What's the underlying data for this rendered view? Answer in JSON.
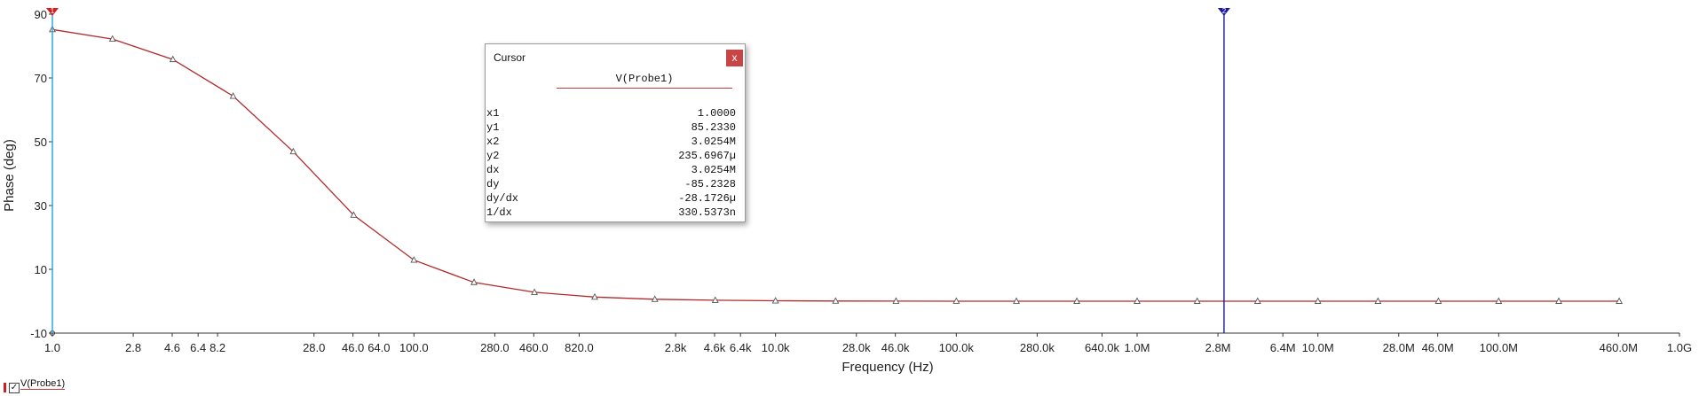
{
  "chart_data": {
    "type": "line",
    "xlabel": "Frequency (Hz)",
    "ylabel": "Phase (deg)",
    "x_scale": "log",
    "xlim": [
      1,
      1000000000
    ],
    "ylim": [
      -10,
      90
    ],
    "x_tick_labels": [
      {
        "v": 1,
        "label": "1.0"
      },
      {
        "v": 2.8,
        "label": "2.8"
      },
      {
        "v": 4.6,
        "label": "4.6"
      },
      {
        "v": 6.4,
        "label": "6.4"
      },
      {
        "v": 8.2,
        "label": "8.2"
      },
      {
        "v": 28,
        "label": "28.0"
      },
      {
        "v": 46,
        "label": "46.0"
      },
      {
        "v": 64,
        "label": "64.0"
      },
      {
        "v": 100,
        "label": "100.0"
      },
      {
        "v": 280,
        "label": "280.0"
      },
      {
        "v": 460,
        "label": "460.0"
      },
      {
        "v": 820,
        "label": "820.0"
      },
      {
        "v": 2800,
        "label": "2.8k"
      },
      {
        "v": 4600,
        "label": "4.6k"
      },
      {
        "v": 6400,
        "label": "6.4k"
      },
      {
        "v": 10000,
        "label": "10.0k"
      },
      {
        "v": 28000,
        "label": "28.0k"
      },
      {
        "v": 46000,
        "label": "46.0k"
      },
      {
        "v": 100000,
        "label": "100.0k"
      },
      {
        "v": 280000,
        "label": "280.0k"
      },
      {
        "v": 640000,
        "label": "640.0k"
      },
      {
        "v": 1000000,
        "label": "1.0M"
      },
      {
        "v": 2800000,
        "label": "2.8M"
      },
      {
        "v": 6400000,
        "label": "6.4M"
      },
      {
        "v": 10000000,
        "label": "10.0M"
      },
      {
        "v": 28000000,
        "label": "28.0M"
      },
      {
        "v": 46000000,
        "label": "46.0M"
      },
      {
        "v": 100000000,
        "label": "100.0M"
      },
      {
        "v": 460000000,
        "label": "460.0M"
      },
      {
        "v": 1000000000,
        "label": "1.0G"
      }
    ],
    "y_tick_labels": [
      {
        "v": 90,
        "label": "90"
      },
      {
        "v": 70,
        "label": "70"
      },
      {
        "v": 50,
        "label": "50"
      },
      {
        "v": 30,
        "label": "30"
      },
      {
        "v": 10,
        "label": "10"
      },
      {
        "v": -10,
        "label": "-10"
      }
    ],
    "series": [
      {
        "name": "V(Probe1)",
        "color": "#b22a2a",
        "x": [
          1,
          2.15,
          4.64,
          10,
          21.5,
          46.4,
          100,
          215,
          464,
          1000,
          2150,
          4640,
          10000,
          21500,
          46400,
          100000,
          215000,
          464000,
          1000000,
          2150000,
          4640000,
          10000000,
          21500000,
          46400000,
          100000000,
          215000000,
          464000000
        ],
        "y": [
          85.2,
          82.2,
          75.8,
          64.3,
          46.9,
          27.0,
          12.9,
          5.9,
          2.8,
          1.3,
          0.6,
          0.3,
          0.13,
          0.06,
          0.03,
          0.013,
          0.006,
          0.003,
          0.0013,
          0.0006,
          0.0003,
          0.0001,
          0.0001,
          0.0,
          0.0,
          0.0,
          0.0
        ],
        "marker": "triangle"
      }
    ],
    "cursors": [
      {
        "label": "1",
        "x": 1.0,
        "color": "#22a6d6",
        "marker_color": "#d21e1e"
      },
      {
        "label": "2",
        "x": 3025400,
        "color": "#1b1b9a",
        "marker_color": "#1b1b9a"
      }
    ],
    "grid": false
  },
  "cursor_panel": {
    "title": "Cursor",
    "close": "x",
    "column_header": "V(Probe1)",
    "rows": [
      {
        "key": "x1",
        "value": "1.0000"
      },
      {
        "key": "y1",
        "value": "85.2330"
      },
      {
        "key": "x2",
        "value": "3.0254M"
      },
      {
        "key": "y2",
        "value": "235.6967µ"
      },
      {
        "key": "dx",
        "value": "3.0254M"
      },
      {
        "key": "dy",
        "value": "-85.2328"
      },
      {
        "key": "dy/dx",
        "value": "-28.1726µ"
      },
      {
        "key": "1/dx",
        "value": "330.5373n"
      }
    ]
  },
  "legend": {
    "label": "V(Probe1)",
    "checked": "✓"
  }
}
